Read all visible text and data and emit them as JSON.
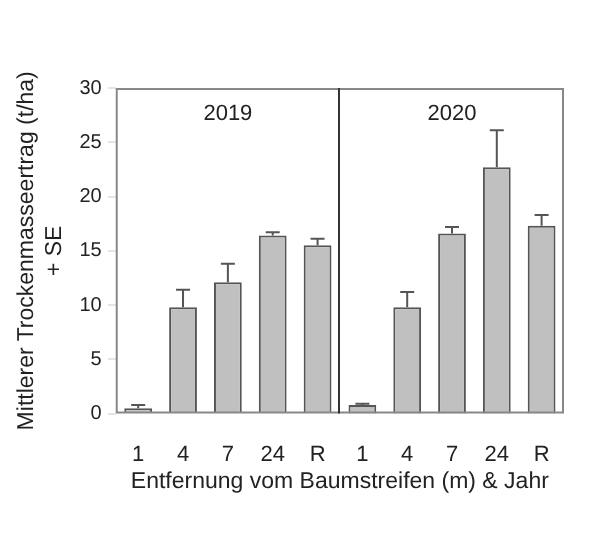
{
  "chart_data": [
    {
      "type": "bar",
      "ylabel": "Mittlerer Trockenmasseertrag (t/ha)\n+ SE",
      "xlabel": "Entfernung vom Baumstreifen (m) & Jahr",
      "categories": [
        "1",
        "4",
        "7",
        "24",
        "R"
      ],
      "values": [
        0.5,
        9.8,
        12.1,
        16.4,
        15.5
      ],
      "errors": [
        0.3,
        1.6,
        1.7,
        0.3,
        0.6
      ],
      "color": "#c0c0c0",
      "ylim": [
        0,
        30
      ],
      "yticks": [
        0,
        5,
        10,
        15,
        20,
        25,
        30
      ],
      "annotations": [
        "2019"
      ]
    },
    {
      "type": "bar",
      "categories": [
        "1",
        "4",
        "7",
        "24",
        "R"
      ],
      "values": [
        0.8,
        9.8,
        16.6,
        22.7,
        17.3
      ],
      "errors": [
        0.1,
        1.4,
        0.6,
        3.4,
        1.0
      ],
      "color": "#c0c0c0",
      "ylim": [
        0,
        30
      ],
      "tick_labels": "x",
      "annotations": [
        "2020"
      ]
    }
  ]
}
